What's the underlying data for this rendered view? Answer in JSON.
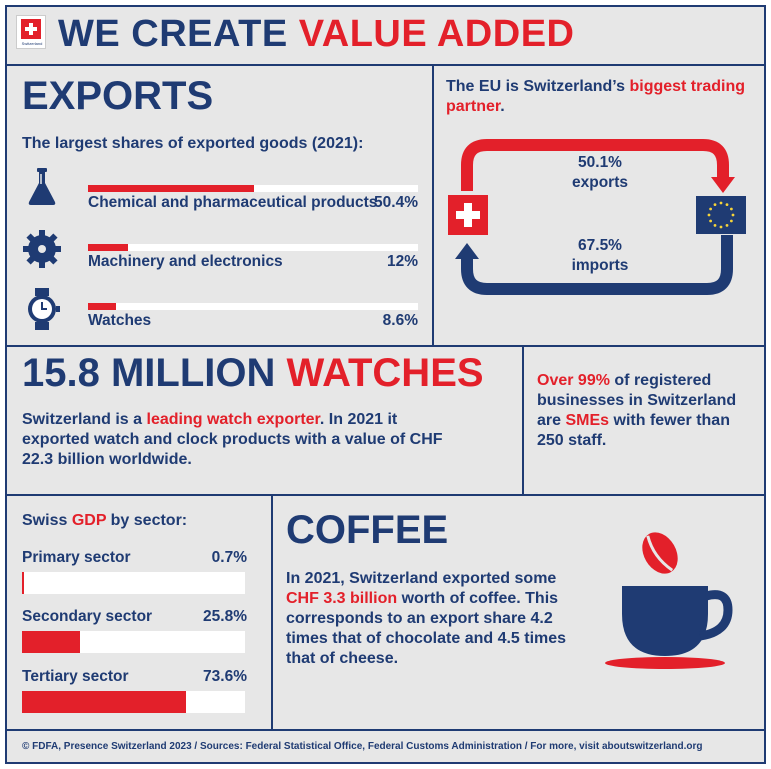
{
  "colors": {
    "navy": "#1f3b73",
    "red": "#e3202a",
    "background": "#e7e7e7"
  },
  "header": {
    "logo_caption": "Switzerland",
    "title_part1": "WE CREATE",
    "title_part2": "VALUE ADDED"
  },
  "exports": {
    "title": "EXPORTS",
    "subtitle": "The largest shares of exported goods (2021):",
    "items": [
      {
        "icon": "flask-icon",
        "label": "Chemical and pharmaceutical products",
        "value": "50.4%",
        "share": 50.4
      },
      {
        "icon": "gear-icon",
        "label": "Machinery and electronics",
        "value": "12%",
        "share": 12
      },
      {
        "icon": "watch-icon",
        "label": "Watches",
        "value": "8.6%",
        "share": 8.6
      }
    ]
  },
  "trade": {
    "text_part1": "The EU is Switzerland’s",
    "text_part2": "biggest trading partner",
    "text_part3": ".",
    "exports_value": "50.1%",
    "exports_label": "exports",
    "imports_value": "67.5%",
    "imports_label": "imports"
  },
  "watches": {
    "title_part1": "15.8 MILLION",
    "title_part2": "WATCHES",
    "text_part1": "Switzerland is a",
    "text_highlight": "leading watch exporter",
    "text_part2": ". In 2021 it exported watch and clock products with a value of CHF 22.3 billion worldwide."
  },
  "smes": {
    "highlight1": "Over 99%",
    "text1": "of registered businesses in Switzerland are",
    "highlight2": "SMEs",
    "text2": "with fewer than 250 staff."
  },
  "gdp": {
    "title_part1": "Swiss",
    "title_highlight": "GDP",
    "title_part2": "by sector:",
    "sectors": [
      {
        "label": "Primary sector",
        "value": "0.7%",
        "share": 0.7
      },
      {
        "label": "Secondary sector",
        "value": "25.8%",
        "share": 25.8
      },
      {
        "label": "Tertiary sector",
        "value": "73.6%",
        "share": 73.6
      }
    ]
  },
  "coffee": {
    "title": "COFFEE",
    "text1": "In 2021, Switzerland exported some",
    "highlight": "CHF 3.3 billion",
    "text2": "worth of coffee.",
    "text3": "This corresponds to an export share 4.2 times that of chocolate and 4.5 times that of cheese."
  },
  "footer": {
    "text": "© FDFA, Presence Switzerland 2023 / Sources: Federal Statistical Office, Federal Customs Administration / For more, visit aboutswitzerland.org"
  }
}
